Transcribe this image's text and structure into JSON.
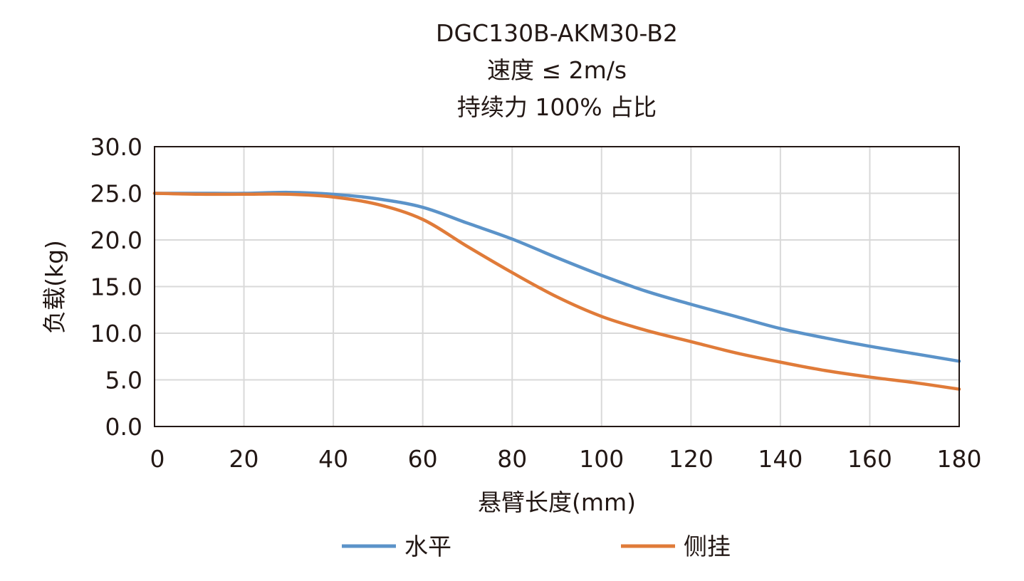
{
  "chart_data": {
    "type": "line",
    "title": [
      "DGC130B-AKM30-B2",
      "速度 ≤ 2m/s",
      "持续力 100% 占比"
    ],
    "xlabel": "悬臂长度(mm)",
    "ylabel": "负载(kg)",
    "xlim": [
      0,
      180
    ],
    "ylim": [
      0,
      30
    ],
    "xticks": [
      "0",
      "20",
      "40",
      "60",
      "80",
      "100",
      "120",
      "140",
      "160",
      "180"
    ],
    "yticks": [
      "0.0",
      "5.0",
      "10.0",
      "15.0",
      "20.0",
      "25.0",
      "30.0"
    ],
    "grid": true,
    "legend_position": "bottom",
    "x": [
      0,
      10,
      20,
      30,
      40,
      50,
      60,
      70,
      80,
      90,
      100,
      110,
      120,
      130,
      140,
      150,
      160,
      170,
      180
    ],
    "series": [
      {
        "name": "水平",
        "color": "#5b93c9",
        "values": [
          25.0,
          25.0,
          25.0,
          25.1,
          24.9,
          24.4,
          23.5,
          21.8,
          20.1,
          18.1,
          16.2,
          14.5,
          13.1,
          11.8,
          10.5,
          9.5,
          8.6,
          7.8,
          7.0
        ]
      },
      {
        "name": "侧挂",
        "color": "#e07b39",
        "values": [
          25.0,
          24.9,
          24.9,
          24.9,
          24.6,
          23.8,
          22.2,
          19.3,
          16.5,
          13.9,
          11.8,
          10.3,
          9.1,
          7.9,
          6.9,
          6.0,
          5.3,
          4.7,
          4.0
        ]
      }
    ]
  }
}
